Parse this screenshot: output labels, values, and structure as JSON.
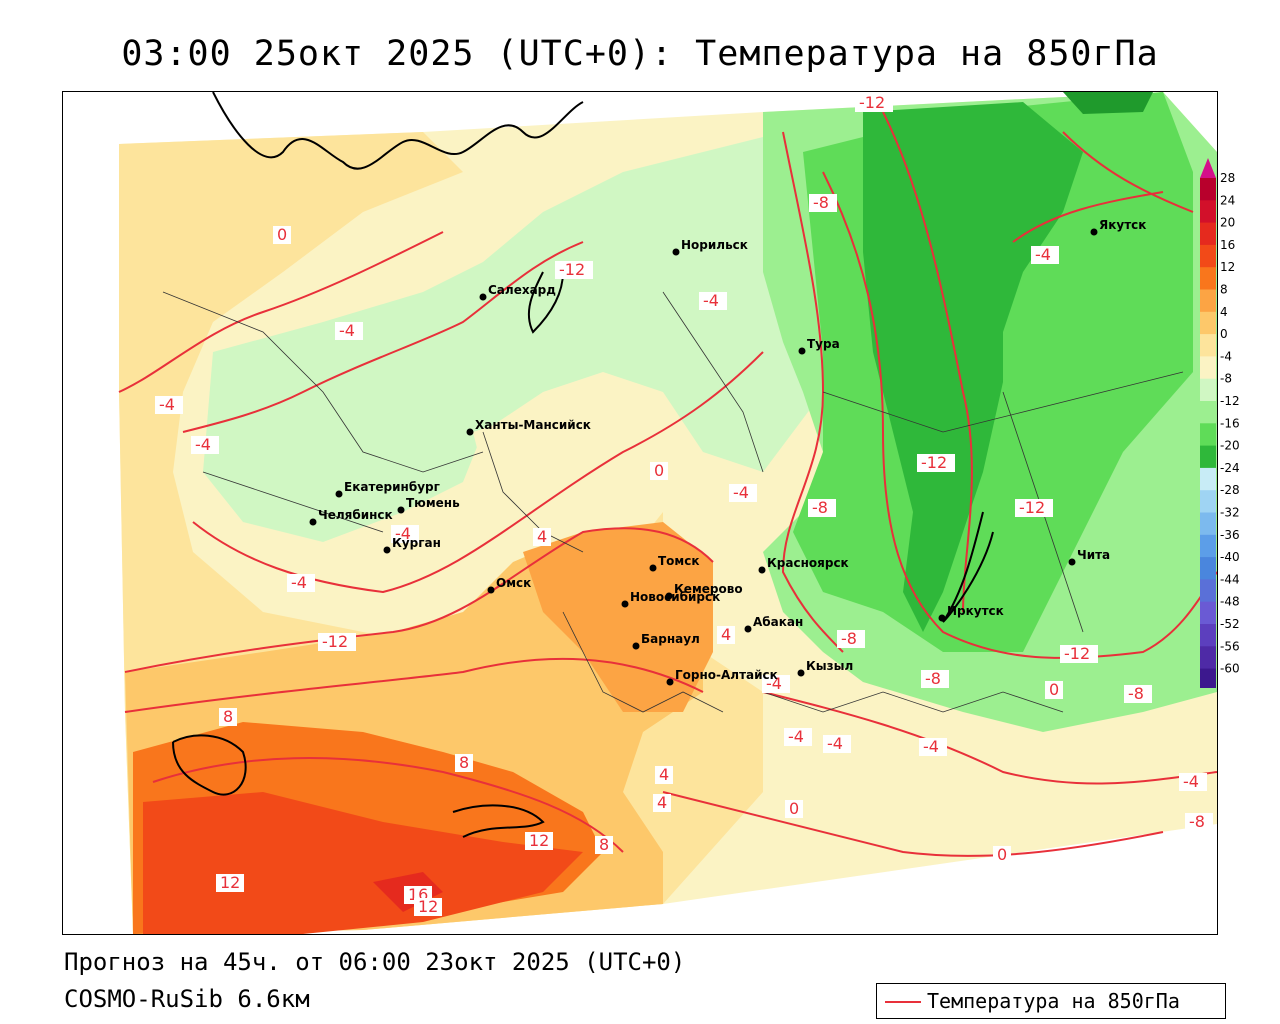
{
  "title": "03:00 25окт 2025 (UTC+0): Температура на 850гПа",
  "footer": {
    "forecast": "Прогноз на 45ч. от 06:00 23окт 2025 (UTC+0)",
    "model": "COSMO-RuSib 6.6км"
  },
  "legend": {
    "series_label": "Температура на 850гПа",
    "line_color": "#e8303a"
  },
  "colorbar": {
    "ticks": [
      "28",
      "24",
      "20",
      "16",
      "12",
      "8",
      "4",
      "0",
      "-4",
      "-8",
      "-12",
      "-16",
      "-20",
      "-24",
      "-28",
      "-32",
      "-36",
      "-40",
      "-44",
      "-48",
      "-52",
      "-56",
      "-60"
    ],
    "colors": [
      "#b8002c",
      "#d2102a",
      "#e52a1e",
      "#f24a18",
      "#f9761c",
      "#fca444",
      "#fdc86a",
      "#fde49c",
      "#fbf3c4",
      "#d0f7c3",
      "#9cef90",
      "#5fdc58",
      "#2fb83a",
      "#c8ecf6",
      "#9fd4f3",
      "#7cbaee",
      "#5c9ee8",
      "#4a86dd",
      "#5a70d8",
      "#6a5ad4",
      "#5c3fbe",
      "#4e2aa6",
      "#3c188e"
    ],
    "arrow_top_color": "#d4108a",
    "arrow_bottom_color": "#8a1fd0"
  },
  "cities": [
    {
      "name": "Салехард"
    },
    {
      "name": "Норильск"
    },
    {
      "name": "Тура"
    },
    {
      "name": "Якутск"
    },
    {
      "name": "Ханты-Мансийск"
    },
    {
      "name": "Екатеринбург"
    },
    {
      "name": "Тюмень"
    },
    {
      "name": "Челябинск"
    },
    {
      "name": "Курган"
    },
    {
      "name": "Омск"
    },
    {
      "name": "Новосибирск"
    },
    {
      "name": "Томск"
    },
    {
      "name": "Кемерово"
    },
    {
      "name": "Красноярск"
    },
    {
      "name": "Абакан"
    },
    {
      "name": "Барнаул"
    },
    {
      "name": "Горно-Алтайск"
    },
    {
      "name": "Кызыл"
    },
    {
      "name": "Иркутск"
    },
    {
      "name": "Чита"
    }
  ],
  "isolines": [
    "-12",
    "-8",
    "-4",
    "-12",
    "0",
    "-4",
    "-4",
    "-4",
    "-4",
    "-12",
    "-12",
    "-12",
    "-8",
    "-4",
    "-4",
    "4",
    "0",
    "-4",
    "-8",
    "-8",
    "-12",
    "4",
    "4",
    "8",
    "8",
    "4",
    "-4",
    "-4",
    "-4",
    "-4",
    "-8",
    "-8",
    "0",
    "-4",
    "12",
    "12",
    "8",
    "16",
    "12",
    "0",
    "0"
  ]
}
